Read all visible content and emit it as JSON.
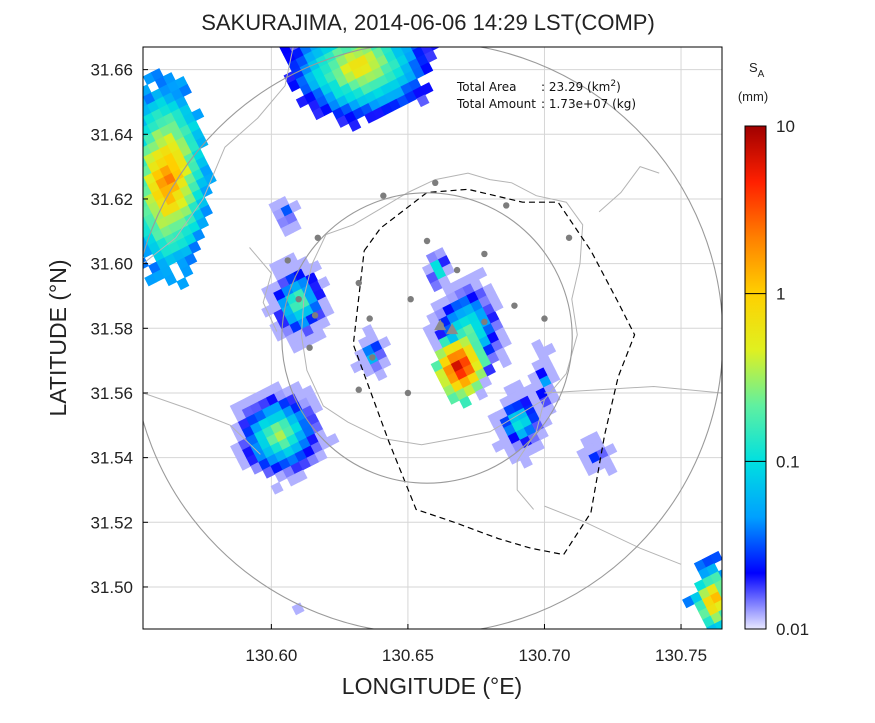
{
  "chart_data": {
    "type": "heatmap",
    "title": "SAKURAJIMA, 2014-06-06 14:29 LST(COMP)",
    "xlabel": "LONGITUDE (°E)",
    "ylabel": "LATITUDE (°N)",
    "xlim": [
      130.553,
      130.765
    ],
    "ylim": [
      31.487,
      31.667
    ],
    "xticks": [
      "130.60",
      "130.65",
      "130.70",
      "130.75"
    ],
    "yticks": [
      "31.50",
      "31.52",
      "31.54",
      "31.56",
      "31.58",
      "31.60",
      "31.62",
      "31.64",
      "31.66"
    ],
    "grid": true,
    "annotations": {
      "area_label": "Total Area",
      "area_value": ": 23.29 (km",
      "area_sup": "2",
      "area_close": ")",
      "amount_label": "Total Amount",
      "amount_value": ": 1.73e+07 (kg)"
    },
    "colorbar": {
      "title_main": "S",
      "title_sub": "A",
      "unit": "(mm)",
      "scale": "log",
      "range": [
        0.01,
        10
      ],
      "ticks": [
        "10",
        "1",
        "0.1",
        "0.01"
      ],
      "colors": [
        "#e8e8ff",
        "#0000ff",
        "#00a0ff",
        "#00e0e0",
        "#60f0a0",
        "#e0f020",
        "#ffd000",
        "#ff8000",
        "#ff2000",
        "#a00000"
      ]
    },
    "vent": {
      "lon": 130.664,
      "lat": 31.581
    },
    "rings": [
      {
        "center": [
          130.657,
          31.577
        ],
        "radius_deg": 0.053
      },
      {
        "center": [
          130.657,
          31.577
        ],
        "radius_deg": 0.108
      }
    ],
    "stations": [
      [
        130.66,
        31.625
      ],
      [
        130.641,
        31.621
      ],
      [
        130.617,
        31.608
      ],
      [
        130.657,
        31.607
      ],
      [
        130.678,
        31.603
      ],
      [
        130.686,
        31.618
      ],
      [
        130.709,
        31.608
      ],
      [
        130.606,
        31.601
      ],
      [
        130.668,
        31.598
      ],
      [
        130.632,
        31.594
      ],
      [
        130.61,
        31.589
      ],
      [
        130.651,
        31.589
      ],
      [
        130.689,
        31.587
      ],
      [
        130.616,
        31.584
      ],
      [
        130.636,
        31.583
      ],
      [
        130.678,
        31.582
      ],
      [
        130.7,
        31.583
      ],
      [
        130.662,
        31.581
      ],
      [
        130.614,
        31.574
      ],
      [
        130.637,
        31.571
      ],
      [
        130.632,
        31.561
      ],
      [
        130.65,
        31.56
      ]
    ],
    "clusters": [
      {
        "name": "main plume",
        "lon": 130.669,
        "lat": 31.568,
        "rlon": 0.009,
        "rlat": 0.0095,
        "max": 10.0
      },
      {
        "name": "main plume tail",
        "lon": 130.661,
        "lat": 31.598,
        "rlon": 0.004,
        "rlat": 0.0075,
        "max": 0.25
      },
      {
        "name": "main plume outer",
        "lon": 130.672,
        "lat": 31.577,
        "rlon": 0.013,
        "rlat": 0.018,
        "max": 0.4
      },
      {
        "name": "south-east lobe",
        "lon": 130.691,
        "lat": 31.551,
        "rlon": 0.01,
        "rlat": 0.011,
        "max": 0.2
      },
      {
        "name": "south-east finger",
        "lon": 130.7,
        "lat": 31.563,
        "rlon": 0.004,
        "rlat": 0.013,
        "max": 0.09
      },
      {
        "name": "south-east spot",
        "lon": 130.719,
        "lat": 31.541,
        "rlon": 0.006,
        "rlat": 0.0055,
        "max": 0.06
      },
      {
        "name": "central-west spot",
        "lon": 130.637,
        "lat": 31.572,
        "rlon": 0.0055,
        "rlat": 0.007,
        "max": 0.15
      },
      {
        "name": "south-west large",
        "lon": 130.603,
        "lat": 31.547,
        "rlon": 0.017,
        "rlat": 0.015,
        "max": 0.4
      },
      {
        "name": "west blob",
        "lon": 130.61,
        "lat": 31.588,
        "rlon": 0.011,
        "rlat": 0.013,
        "max": 0.3
      },
      {
        "name": "north-west small",
        "lon": 130.605,
        "lat": 31.615,
        "rlon": 0.005,
        "rlat": 0.005,
        "max": 0.1
      },
      {
        "name": "north-west edge",
        "lon": 130.562,
        "lat": 31.626,
        "rlon": 0.015,
        "rlat": 0.028,
        "max": 2.5
      },
      {
        "name": "north band",
        "lon": 130.632,
        "lat": 31.661,
        "rlon": 0.026,
        "rlat": 0.016,
        "max": 1.0
      },
      {
        "name": "east edge",
        "lon": 130.762,
        "lat": 31.496,
        "rlon": 0.008,
        "rlat": 0.011,
        "max": 2.0
      },
      {
        "name": "south spot",
        "lon": 130.61,
        "lat": 31.494,
        "rlon": 0.001,
        "rlat": 0.001,
        "max": 0.02
      }
    ],
    "coastline": [
      [
        [
          130.615,
          31.6
        ],
        [
          130.62,
          31.609
        ],
        [
          130.63,
          31.612
        ],
        [
          130.64,
          31.617
        ],
        [
          130.65,
          31.622
        ],
        [
          130.66,
          31.626
        ],
        [
          130.672,
          31.628
        ],
        [
          130.68,
          31.626
        ],
        [
          130.688,
          31.625
        ],
        [
          130.697,
          31.621
        ],
        [
          130.708,
          31.619
        ],
        [
          130.714,
          31.612
        ],
        [
          130.713,
          31.6
        ],
        [
          130.71,
          31.589
        ],
        [
          130.712,
          31.578
        ],
        [
          130.708,
          31.566
        ],
        [
          130.7,
          31.558
        ],
        [
          130.69,
          31.553
        ],
        [
          130.68,
          31.548
        ],
        [
          130.668,
          31.546
        ],
        [
          130.655,
          31.544
        ],
        [
          130.64,
          31.546
        ],
        [
          130.628,
          31.551
        ],
        [
          130.619,
          31.556
        ],
        [
          130.613,
          31.567
        ],
        [
          130.611,
          31.578
        ],
        [
          130.612,
          31.59
        ],
        [
          130.615,
          31.6
        ]
      ],
      [
        [
          130.7,
          31.558
        ],
        [
          130.697,
          31.548
        ],
        [
          130.69,
          31.539
        ],
        [
          130.69,
          31.53
        ],
        [
          130.696,
          31.524
        ]
      ],
      [
        [
          130.553,
          31.6
        ],
        [
          130.565,
          31.608
        ],
        [
          130.575,
          31.62
        ],
        [
          130.583,
          31.636
        ],
        [
          130.595,
          31.645
        ],
        [
          130.605,
          31.655
        ],
        [
          130.608,
          31.667
        ]
      ],
      [
        [
          130.553,
          31.56
        ],
        [
          130.57,
          31.555
        ],
        [
          130.585,
          31.55
        ],
        [
          130.596,
          31.541
        ]
      ],
      [
        [
          130.7,
          31.56
        ],
        [
          130.72,
          31.561
        ],
        [
          130.74,
          31.562
        ],
        [
          130.765,
          31.56
        ]
      ],
      [
        [
          130.7,
          31.525
        ],
        [
          130.715,
          31.52
        ],
        [
          130.735,
          31.512
        ],
        [
          130.75,
          31.507
        ]
      ],
      [
        [
          130.592,
          31.605
        ],
        [
          130.6,
          31.597
        ],
        [
          130.597,
          31.588
        ],
        [
          130.602,
          31.579
        ]
      ],
      [
        [
          130.72,
          31.616
        ],
        [
          130.728,
          31.622
        ],
        [
          130.735,
          31.63
        ],
        [
          130.742,
          31.628
        ]
      ]
    ],
    "restricted_zone": [
      [
        130.634,
        31.604
      ],
      [
        130.64,
        31.611
      ],
      [
        130.657,
        31.622
      ],
      [
        130.672,
        31.623
      ],
      [
        130.692,
        31.619
      ],
      [
        130.705,
        31.619
      ],
      [
        130.717,
        31.604
      ],
      [
        130.727,
        31.588
      ],
      [
        130.733,
        31.578
      ],
      [
        130.727,
        31.565
      ],
      [
        130.722,
        31.547
      ],
      [
        130.717,
        31.523
      ],
      [
        130.707,
        31.51
      ],
      [
        130.695,
        31.512
      ],
      [
        130.683,
        31.515
      ],
      [
        130.667,
        31.52
      ],
      [
        130.653,
        31.524
      ],
      [
        130.643,
        31.545
      ],
      [
        130.63,
        31.575
      ],
      [
        130.634,
        31.604
      ]
    ]
  }
}
